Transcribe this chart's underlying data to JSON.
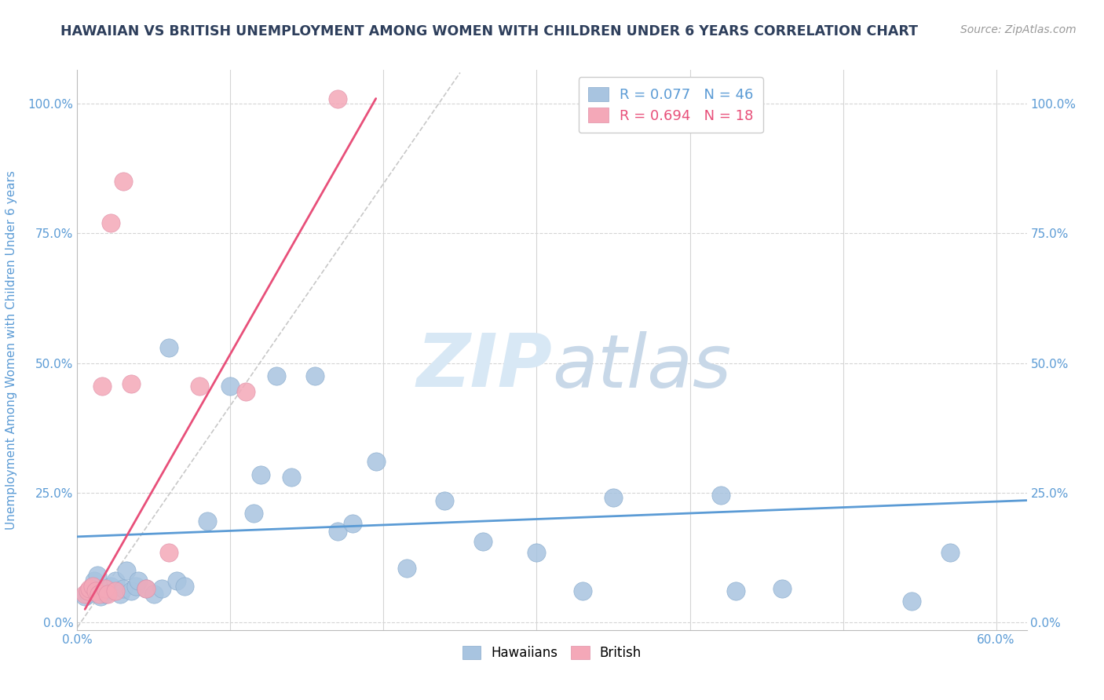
{
  "title": "HAWAIIAN VS BRITISH UNEMPLOYMENT AMONG WOMEN WITH CHILDREN UNDER 6 YEARS CORRELATION CHART",
  "source": "Source: ZipAtlas.com",
  "ylabel": "Unemployment Among Women with Children Under 6 years",
  "xlim": [
    0.0,
    0.62
  ],
  "ylim": [
    -0.015,
    1.065
  ],
  "xticks": [
    0.0,
    0.1,
    0.2,
    0.3,
    0.4,
    0.5,
    0.6
  ],
  "xtick_labels": [
    "0.0%",
    "",
    "",
    "",
    "",
    "",
    "60.0%"
  ],
  "yticks": [
    0.0,
    0.25,
    0.5,
    0.75,
    1.0
  ],
  "ytick_labels_left": [
    "0.0%",
    "25.0%",
    "50.0%",
    "75.0%",
    "100.0%"
  ],
  "ytick_labels_right": [
    "0.0%",
    "25.0%",
    "50.0%",
    "75.0%",
    "100.0%"
  ],
  "legend_r_hawaiians": "R = 0.077",
  "legend_n_hawaiians": "N = 46",
  "legend_r_british": "R = 0.694",
  "legend_n_british": "N = 18",
  "hawaiians_color": "#a8c4e0",
  "british_color": "#f4a8b8",
  "trend_hawaiians_color": "#5b9bd5",
  "trend_british_color": "#e8507a",
  "background_color": "#ffffff",
  "grid_color": "#d5d5d5",
  "title_color": "#2e3f5c",
  "axis_tick_color": "#5b9bd5",
  "watermark_color": "#d8e8f5",
  "hawaiians_x": [
    0.005,
    0.007,
    0.008,
    0.009,
    0.01,
    0.011,
    0.013,
    0.015,
    0.016,
    0.018,
    0.02,
    0.022,
    0.025,
    0.028,
    0.03,
    0.032,
    0.035,
    0.038,
    0.04,
    0.045,
    0.05,
    0.055,
    0.06,
    0.065,
    0.07,
    0.085,
    0.1,
    0.115,
    0.12,
    0.13,
    0.14,
    0.155,
    0.17,
    0.18,
    0.195,
    0.215,
    0.24,
    0.265,
    0.3,
    0.33,
    0.35,
    0.42,
    0.43,
    0.46,
    0.545,
    0.57
  ],
  "hawaiians_y": [
    0.05,
    0.055,
    0.06,
    0.065,
    0.07,
    0.08,
    0.09,
    0.05,
    0.06,
    0.055,
    0.065,
    0.07,
    0.08,
    0.055,
    0.065,
    0.1,
    0.06,
    0.07,
    0.08,
    0.065,
    0.055,
    0.065,
    0.53,
    0.08,
    0.07,
    0.195,
    0.455,
    0.21,
    0.285,
    0.475,
    0.28,
    0.475,
    0.175,
    0.19,
    0.31,
    0.105,
    0.235,
    0.155,
    0.135,
    0.06,
    0.24,
    0.245,
    0.06,
    0.065,
    0.04,
    0.135
  ],
  "british_x": [
    0.005,
    0.007,
    0.008,
    0.01,
    0.012,
    0.014,
    0.016,
    0.018,
    0.02,
    0.022,
    0.025,
    0.03,
    0.035,
    0.045,
    0.06,
    0.08,
    0.11,
    0.17
  ],
  "british_y": [
    0.055,
    0.06,
    0.065,
    0.07,
    0.06,
    0.055,
    0.455,
    0.065,
    0.055,
    0.77,
    0.06,
    0.85,
    0.46,
    0.065,
    0.135,
    0.455,
    0.445,
    1.01
  ],
  "trend_hawaiians_x0": 0.0,
  "trend_hawaiians_x1": 0.62,
  "trend_hawaiians_y0": 0.165,
  "trend_hawaiians_y1": 0.235,
  "trend_british_x0": 0.005,
  "trend_british_x1": 0.195,
  "trend_british_y0": 0.025,
  "trend_british_y1": 1.01,
  "trend_british_dash_x0": 0.0,
  "trend_british_dash_x1": 0.25,
  "trend_british_dash_y0": -0.01,
  "trend_british_dash_y1": 1.06
}
